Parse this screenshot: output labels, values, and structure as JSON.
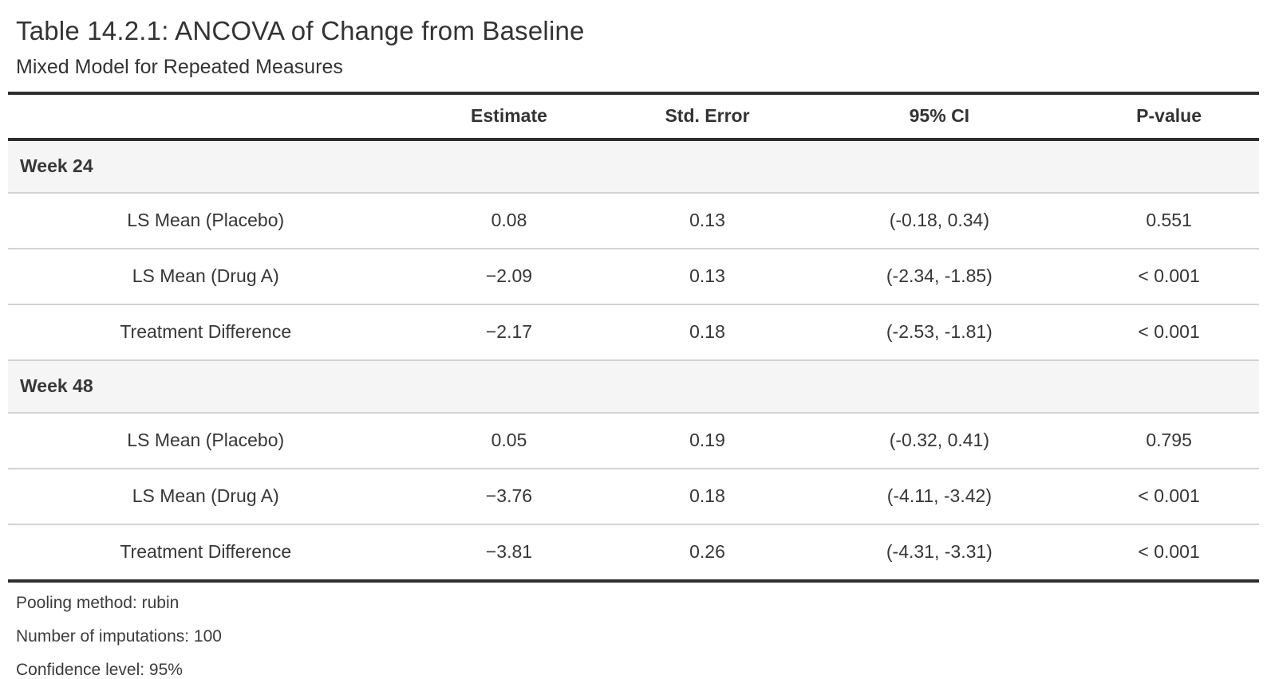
{
  "title": "Table 14.2.1: ANCOVA of Change from Baseline",
  "subtitle": "Mixed Model for Repeated Measures",
  "columns": {
    "stub": "",
    "estimate": "Estimate",
    "std_error": "Std. Error",
    "ci": "95% CI",
    "p_value": "P-value"
  },
  "groups": [
    {
      "label": "Week 24",
      "rows": [
        {
          "label": "LS Mean (Placebo)",
          "estimate": "0.08",
          "std_error": "0.13",
          "ci": "(-0.18, 0.34)",
          "p_value": "0.551"
        },
        {
          "label": "LS Mean (Drug A)",
          "estimate": "−2.09",
          "std_error": "0.13",
          "ci": "(-2.34, -1.85)",
          "p_value": "< 0.001"
        },
        {
          "label": "Treatment Difference",
          "estimate": "−2.17",
          "std_error": "0.18",
          "ci": "(-2.53, -1.81)",
          "p_value": "< 0.001"
        }
      ]
    },
    {
      "label": "Week 48",
      "rows": [
        {
          "label": "LS Mean (Placebo)",
          "estimate": "0.05",
          "std_error": "0.19",
          "ci": "(-0.32, 0.41)",
          "p_value": "0.795"
        },
        {
          "label": "LS Mean (Drug A)",
          "estimate": "−3.76",
          "std_error": "0.18",
          "ci": "(-4.11, -3.42)",
          "p_value": "< 0.001"
        },
        {
          "label": "Treatment Difference",
          "estimate": "−3.81",
          "std_error": "0.26",
          "ci": "(-4.31, -3.31)",
          "p_value": "< 0.001"
        }
      ]
    }
  ],
  "footnotes": [
    "Pooling method: rubin",
    "Number of imputations: 100",
    "Confidence level: 95%"
  ],
  "colors": {
    "rule_dark": "#2e2e2e",
    "rule_light": "#d3d3d3",
    "group_row_background": "#f5f5f5",
    "text": "#373737",
    "background": "#ffffff"
  }
}
